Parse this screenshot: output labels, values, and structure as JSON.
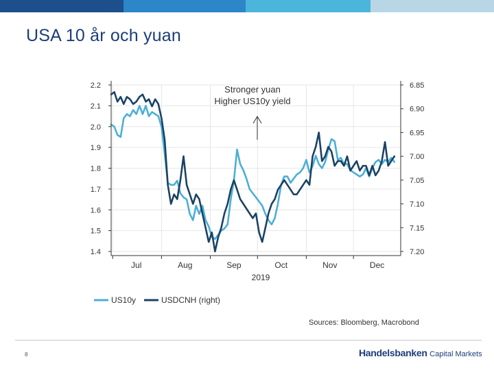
{
  "slide": {
    "title": "USA 10 år och yuan",
    "page_number": "8",
    "brand_main": "Handelsbanken",
    "brand_sub": "Capital Markets",
    "source": "Sources: Bloomberg, Macrobond",
    "top_bar_colors": [
      "#1c4f8c",
      "#2c86c8",
      "#4cb5dc",
      "#b8d6e6"
    ]
  },
  "chart_data": {
    "type": "line",
    "annotation_line1": "Stronger yuan",
    "annotation_line2": "Higher US10y yield",
    "xlabel": "2019",
    "x_ticks": [
      "Jul",
      "Aug",
      "Sep",
      "Oct",
      "Nov",
      "Dec"
    ],
    "x_tick_days": [
      16,
      47,
      78,
      108,
      139,
      169
    ],
    "x_range_days": [
      0,
      184
    ],
    "y_left": {
      "ticks": [
        "2.2",
        "2.1",
        "2.0",
        "1.9",
        "1.8",
        "1.7",
        "1.6",
        "1.5",
        "1.4"
      ],
      "range": [
        1.4,
        2.2
      ]
    },
    "y_right": {
      "ticks": [
        "6.85",
        "6.90",
        "6.95",
        "7.00",
        "7.05",
        "7.10",
        "7.15",
        "7.20"
      ],
      "range": [
        6.85,
        7.2
      ],
      "inverted": true
    },
    "series": [
      {
        "name": "US10y",
        "axis": "left",
        "color": "#4bafd6",
        "x": [
          0,
          2,
          4,
          6,
          8,
          10,
          12,
          14,
          16,
          18,
          20,
          22,
          24,
          26,
          28,
          30,
          32,
          34,
          36,
          38,
          40,
          42,
          44,
          46,
          48,
          50,
          52,
          54,
          56,
          58,
          60,
          62,
          64,
          66,
          68,
          70,
          72,
          74,
          76,
          78,
          80,
          82,
          84,
          86,
          88,
          90,
          92,
          94,
          96,
          98,
          100,
          102,
          104,
          106,
          108,
          110,
          112,
          114,
          116,
          118,
          120,
          122,
          124,
          126,
          128,
          130,
          132,
          134,
          136,
          138,
          140,
          142,
          144,
          146,
          148,
          150,
          152,
          154,
          156,
          158,
          160,
          162,
          164,
          166,
          168,
          170,
          172,
          174,
          176,
          178,
          180
        ],
        "values": [
          2.01,
          2.0,
          1.96,
          1.95,
          2.04,
          2.06,
          2.05,
          2.08,
          2.06,
          2.1,
          2.06,
          2.1,
          2.05,
          2.07,
          2.06,
          2.05,
          2.0,
          1.87,
          1.73,
          1.72,
          1.72,
          1.74,
          1.68,
          1.66,
          1.65,
          1.58,
          1.55,
          1.62,
          1.58,
          1.62,
          1.55,
          1.52,
          1.47,
          1.46,
          1.48,
          1.5,
          1.51,
          1.53,
          1.65,
          1.74,
          1.89,
          1.82,
          1.79,
          1.75,
          1.7,
          1.68,
          1.66,
          1.64,
          1.62,
          1.58,
          1.55,
          1.53,
          1.56,
          1.63,
          1.72,
          1.76,
          1.76,
          1.73,
          1.75,
          1.77,
          1.78,
          1.8,
          1.84,
          1.78,
          1.81,
          1.86,
          1.82,
          1.8,
          1.83,
          1.89,
          1.94,
          1.93,
          1.84,
          1.85,
          1.82,
          1.82,
          1.79,
          1.78,
          1.77,
          1.76,
          1.77,
          1.8,
          1.76,
          1.8,
          1.83,
          1.84,
          1.82,
          1.84,
          1.83,
          1.85,
          1.83
        ]
      },
      {
        "name": "USDCNH (right)",
        "axis": "right",
        "color": "#1b4264",
        "x": [
          0,
          2,
          4,
          6,
          8,
          10,
          12,
          14,
          16,
          18,
          20,
          22,
          24,
          26,
          28,
          30,
          32,
          34,
          36,
          38,
          40,
          42,
          44,
          46,
          48,
          50,
          52,
          54,
          56,
          58,
          60,
          62,
          64,
          66,
          68,
          70,
          72,
          74,
          76,
          78,
          80,
          82,
          84,
          86,
          88,
          90,
          92,
          94,
          96,
          98,
          100,
          102,
          104,
          106,
          108,
          110,
          112,
          114,
          116,
          118,
          120,
          122,
          124,
          126,
          128,
          130,
          132,
          134,
          136,
          138,
          140,
          142,
          144,
          146,
          148,
          150,
          152,
          154,
          156,
          158,
          160,
          162,
          164,
          166,
          168,
          170,
          172,
          174,
          176,
          178,
          180
        ],
        "values": [
          6.87,
          6.865,
          6.885,
          6.875,
          6.89,
          6.875,
          6.88,
          6.89,
          6.885,
          6.875,
          6.87,
          6.885,
          6.88,
          6.895,
          6.88,
          6.89,
          6.92,
          6.965,
          7.06,
          7.1,
          7.08,
          7.09,
          7.05,
          7.0,
          7.06,
          7.08,
          7.1,
          7.08,
          7.09,
          7.12,
          7.15,
          7.18,
          7.16,
          7.2,
          7.17,
          7.15,
          7.12,
          7.1,
          7.07,
          7.05,
          7.07,
          7.09,
          7.1,
          7.11,
          7.12,
          7.13,
          7.12,
          7.16,
          7.18,
          7.15,
          7.12,
          7.1,
          7.09,
          7.07,
          7.06,
          7.05,
          7.06,
          7.07,
          7.08,
          7.08,
          7.07,
          7.06,
          7.05,
          7.06,
          7.0,
          6.98,
          6.95,
          7.01,
          7.0,
          6.98,
          6.99,
          7.02,
          7.01,
          7.01,
          7.02,
          7.0,
          7.03,
          7.02,
          7.01,
          7.03,
          7.02,
          7.02,
          7.04,
          7.02,
          7.04,
          7.03,
          7.01,
          6.97,
          7.02,
          7.01,
          7.0
        ]
      }
    ],
    "legend": [
      "US10y",
      "USDCNH (right)"
    ],
    "legend_position": "bottom-left"
  }
}
